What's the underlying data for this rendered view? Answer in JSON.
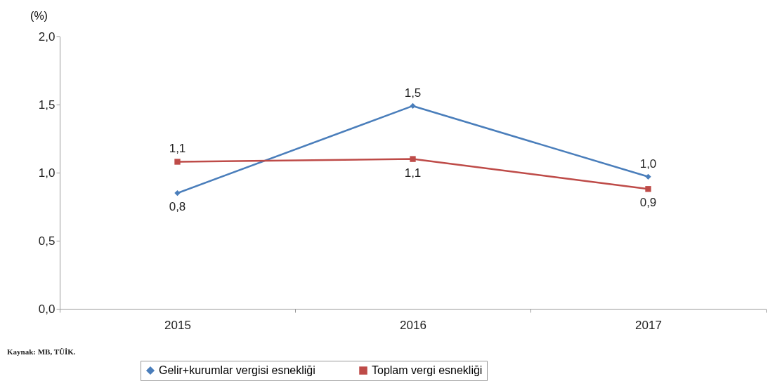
{
  "chart_data": {
    "type": "line",
    "ylabel": "(%)",
    "categories": [
      "2015",
      "2016",
      "2017"
    ],
    "ylim": [
      0,
      2
    ],
    "yticks": [
      {
        "value": 0,
        "label": "0,0"
      },
      {
        "value": 0.5,
        "label": "0,5"
      },
      {
        "value": 1,
        "label": "1,0"
      },
      {
        "value": 1.5,
        "label": "1,5"
      },
      {
        "value": 2,
        "label": "2,0"
      }
    ],
    "series": [
      {
        "name": "Gelir+kurumlar vergisi esnekliği",
        "color": "#4a7ebb",
        "marker": "diamond",
        "values": [
          0.85,
          1.49,
          0.97
        ],
        "value_labels": [
          "0,8",
          "1,5",
          "1,0"
        ]
      },
      {
        "name": "Toplam vergi esnekliği",
        "color": "#be4b48",
        "marker": "square",
        "values": [
          1.08,
          1.1,
          0.88
        ],
        "value_labels": [
          "1,1",
          "1,1",
          "0,9"
        ]
      }
    ],
    "legend": "bottom",
    "grid": false,
    "annotations": [
      "Kaynak: MB, TÜİK."
    ]
  }
}
